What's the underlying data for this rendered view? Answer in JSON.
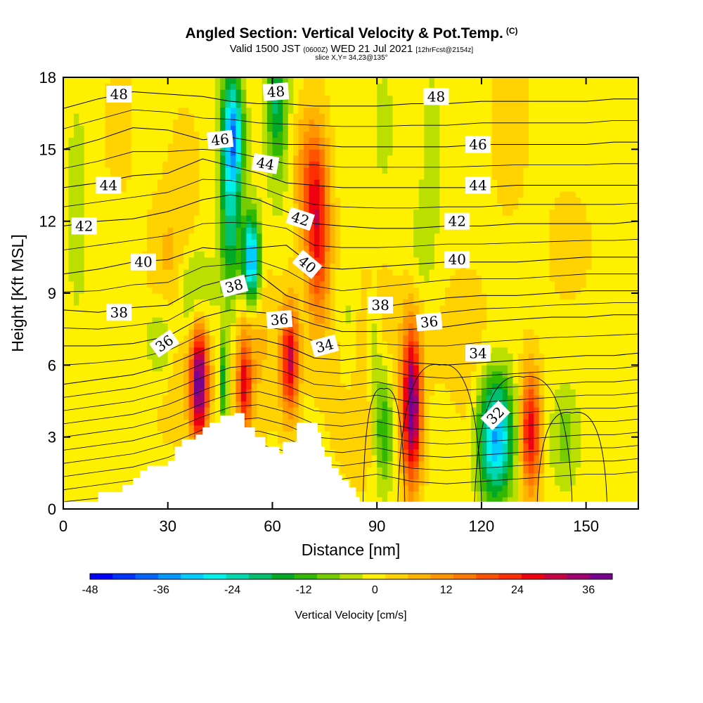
{
  "chart_data": {
    "type": "heatmap",
    "title": "Angled Section: Vertical Velocity & Pot.Temp.",
    "title_suffix": "(C)",
    "subtitle_main_pre": "Valid 1500 JST ",
    "subtitle_small1": "(0600Z)",
    "subtitle_main_post": " WED 21 Jul 2021 ",
    "subtitle_small2": "[12hrFcst@2154z]",
    "slice_info": "slice X,Y= 34,23@135°",
    "xlabel": "Distance [nm]",
    "ylabel": "Height [Kft MSL]",
    "xlim": [
      0,
      165
    ],
    "ylim": [
      0,
      18
    ],
    "xticks": [
      0,
      30,
      60,
      90,
      120,
      150
    ],
    "yticks": [
      0,
      3,
      6,
      9,
      12,
      15,
      18
    ],
    "colorbar": {
      "title": "Vertical Velocity [cm/s]",
      "min": -48,
      "max": 40,
      "step": 4,
      "tick_values": [
        -48,
        -36,
        -24,
        -12,
        0,
        12,
        24,
        36
      ],
      "tick_labels": [
        "-48",
        "-36",
        "-24",
        "-12",
        "0",
        "12",
        "24",
        "36"
      ]
    },
    "vertical_velocity_features": [
      {
        "x": 39,
        "z": 5.3,
        "sx": 1.8,
        "sz": 1.9,
        "w": 40
      },
      {
        "x": 52,
        "z": 5.0,
        "sx": 1.4,
        "sz": 1.4,
        "w": 24
      },
      {
        "x": 65,
        "z": 6.2,
        "sx": 1.8,
        "sz": 1.6,
        "w": 30
      },
      {
        "x": 73,
        "z": 11.5,
        "sx": 2.4,
        "sz": 2.6,
        "w": 26
      },
      {
        "x": 70,
        "z": 14.0,
        "sx": 3.0,
        "sz": 1.8,
        "w": 12
      },
      {
        "x": 100,
        "z": 4.3,
        "sx": 1.9,
        "sz": 2.3,
        "w": 40
      },
      {
        "x": 134,
        "z": 3.2,
        "sx": 2.1,
        "sz": 1.8,
        "w": 29
      },
      {
        "x": 53,
        "z": 7.0,
        "sx": 6.0,
        "sz": 2.5,
        "w": 8
      },
      {
        "x": 30,
        "z": 10.5,
        "sx": 4.0,
        "sz": 2.0,
        "w": 6
      },
      {
        "x": 32,
        "z": 6.0,
        "sx": 5.0,
        "sz": 2.2,
        "w": 5
      },
      {
        "x": 88,
        "z": 5.5,
        "sx": 8.0,
        "sz": 3.0,
        "w": 6
      },
      {
        "x": 115,
        "z": 5.5,
        "sx": 6.0,
        "sz": 3.0,
        "w": 5
      },
      {
        "x": 145,
        "z": 11.0,
        "sx": 4.0,
        "sz": 1.5,
        "w": 5
      },
      {
        "x": 128,
        "z": 16.5,
        "sx": 4.0,
        "sz": 3.0,
        "w": 4
      },
      {
        "x": 16,
        "z": 16.0,
        "sx": 3.0,
        "sz": 2.0,
        "w": 4
      },
      {
        "x": 35,
        "z": 14.0,
        "sx": 3.0,
        "sz": 2.0,
        "w": 4
      },
      {
        "x": 48,
        "z": 13.5,
        "sx": 2.2,
        "sz": 4.0,
        "w": -25
      },
      {
        "x": 54,
        "z": 10.4,
        "sx": 1.7,
        "sz": 1.3,
        "w": -40
      },
      {
        "x": 49,
        "z": 15.6,
        "sx": 2.0,
        "sz": 1.3,
        "w": -20
      },
      {
        "x": 38,
        "z": 8.8,
        "sx": 3.5,
        "sz": 1.4,
        "w": -12
      },
      {
        "x": 28,
        "z": 7.0,
        "sx": 3.0,
        "sz": 1.3,
        "w": -10
      },
      {
        "x": 46,
        "z": 5.3,
        "sx": 0.9,
        "sz": 1.4,
        "w": -18
      },
      {
        "x": 61,
        "z": 17.0,
        "sx": 2.0,
        "sz": 1.8,
        "w": -14
      },
      {
        "x": 62,
        "z": 16.0,
        "sx": 2.5,
        "sz": 3.0,
        "w": -6
      },
      {
        "x": 92,
        "z": 3.5,
        "sx": 2.0,
        "sz": 1.8,
        "w": -18
      },
      {
        "x": 89,
        "z": 6.5,
        "sx": 1.3,
        "sz": 1.5,
        "w": -10
      },
      {
        "x": 124,
        "z": 3.0,
        "sx": 3.7,
        "sz": 1.8,
        "w": -36
      },
      {
        "x": 110,
        "z": 3.0,
        "sx": 3.0,
        "sz": 1.5,
        "w": -5
      },
      {
        "x": 144,
        "z": 3.0,
        "sx": 3.0,
        "sz": 1.5,
        "w": -8
      },
      {
        "x": 4,
        "z": 12.5,
        "sx": 2.0,
        "sz": 3.0,
        "w": -6
      },
      {
        "x": 106,
        "z": 15.0,
        "sx": 2.5,
        "sz": 3.0,
        "w": -4
      },
      {
        "x": 92,
        "z": 16.0,
        "sx": 1.8,
        "sz": 1.5,
        "w": -6
      },
      {
        "x": 103,
        "z": 11.0,
        "sx": 2.5,
        "sz": 1.5,
        "w": -5
      },
      {
        "x": 82,
        "z": 7.5,
        "sx": 2.0,
        "sz": 2.0,
        "w": -6
      }
    ],
    "terrain": [
      [
        0,
        0.3
      ],
      [
        10,
        0.3
      ],
      [
        10,
        0.7
      ],
      [
        17,
        0.7
      ],
      [
        17,
        1.0
      ],
      [
        20,
        1.0
      ],
      [
        20,
        1.3
      ],
      [
        22,
        1.3
      ],
      [
        22,
        1.6
      ],
      [
        24,
        1.6
      ],
      [
        24,
        1.8
      ],
      [
        30,
        1.8
      ],
      [
        30,
        2.0
      ],
      [
        32,
        2.0
      ],
      [
        32,
        2.6
      ],
      [
        34,
        2.6
      ],
      [
        34,
        2.9
      ],
      [
        38,
        2.9
      ],
      [
        38,
        3.1
      ],
      [
        40,
        3.1
      ],
      [
        40,
        3.4
      ],
      [
        42,
        3.4
      ],
      [
        42,
        3.6
      ],
      [
        45,
        3.6
      ],
      [
        45,
        3.9
      ],
      [
        49,
        3.9
      ],
      [
        49,
        4.0
      ],
      [
        52,
        4.0
      ],
      [
        52,
        3.4
      ],
      [
        55,
        3.4
      ],
      [
        55,
        3.0
      ],
      [
        58,
        3.0
      ],
      [
        58,
        2.6
      ],
      [
        62,
        2.6
      ],
      [
        62,
        2.3
      ],
      [
        63,
        2.3
      ],
      [
        63,
        2.8
      ],
      [
        67,
        2.8
      ],
      [
        67,
        3.6
      ],
      [
        73,
        3.6
      ],
      [
        73,
        3.2
      ],
      [
        74,
        3.2
      ],
      [
        74,
        2.6
      ],
      [
        75,
        2.6
      ],
      [
        75,
        2.2
      ],
      [
        77,
        2.2
      ],
      [
        77,
        1.7
      ],
      [
        79,
        1.7
      ],
      [
        79,
        1.4
      ],
      [
        80,
        1.4
      ],
      [
        80,
        1.2
      ],
      [
        82,
        1.2
      ],
      [
        82,
        0.9
      ],
      [
        84,
        0.9
      ],
      [
        84,
        0.5
      ],
      [
        85,
        0.5
      ],
      [
        85,
        0.3
      ],
      [
        165,
        0.3
      ]
    ],
    "isentrope_contours": [
      {
        "theta": 48,
        "z": [
          16.7,
          17.1,
          17.4,
          17.3,
          17.2,
          17.0,
          16.9,
          16.9,
          16.8,
          16.8,
          16.8,
          16.9,
          16.9,
          17.0,
          17.0,
          17.0,
          17.0,
          17.1,
          17.1
        ]
      },
      {
        "theta": 46,
        "z": [
          15.0,
          15.4,
          15.9,
          15.8,
          15.4,
          15.5,
          15.3,
          15.2,
          15.2,
          15.1,
          15.1,
          15.1,
          15.1,
          15.2,
          15.2,
          15.2,
          15.2,
          15.3,
          15.3
        ]
      },
      {
        "theta": 44,
        "z": [
          13.4,
          13.6,
          13.9,
          14.0,
          14.6,
          14.3,
          14.0,
          13.6,
          13.5,
          13.4,
          13.4,
          13.4,
          13.4,
          13.4,
          13.5,
          13.5,
          13.5,
          13.5,
          13.5
        ]
      },
      {
        "theta": 42,
        "z": [
          11.8,
          12.0,
          12.1,
          12.4,
          12.9,
          13.1,
          12.9,
          12.4,
          11.9,
          11.8,
          11.7,
          11.7,
          11.8,
          11.8,
          11.9,
          11.9,
          11.9,
          11.9,
          12.0
        ]
      },
      {
        "theta": 40,
        "z": [
          9.8,
          10.0,
          10.3,
          10.4,
          10.9,
          10.8,
          10.9,
          11.0,
          10.1,
          10.0,
          10.1,
          10.2,
          10.3,
          10.3,
          10.3,
          10.4,
          10.5,
          10.5,
          10.5
        ]
      },
      {
        "theta": 38,
        "z": [
          8.3,
          8.2,
          8.4,
          8.5,
          9.3,
          9.6,
          9.8,
          8.9,
          8.5,
          8.2,
          8.4,
          8.6,
          8.8,
          8.9,
          8.9,
          9.0,
          9.1,
          9.1,
          9.1
        ]
      },
      {
        "theta": 36,
        "z": [
          6.8,
          6.8,
          6.9,
          7.2,
          8.0,
          8.3,
          8.2,
          8.1,
          7.7,
          7.4,
          7.4,
          7.5,
          7.6,
          7.8,
          7.9,
          8.0,
          8.0,
          8.1,
          8.1
        ]
      },
      {
        "theta": 34,
        "z": [
          5.2,
          5.4,
          5.6,
          6.0,
          6.6,
          7.0,
          7.1,
          6.8,
          6.3,
          6.2,
          6.4,
          6.1,
          6.0,
          6.1,
          6.2,
          6.3,
          6.4,
          6.4,
          6.5
        ]
      }
    ],
    "isentrope_x": [
      0,
      10,
      20,
      30,
      40,
      48,
      56,
      64,
      72,
      80,
      90,
      100,
      110,
      120,
      130,
      140,
      150,
      158,
      165
    ],
    "contour_labels": [
      {
        "text": "48",
        "x": 16,
        "z": 17.3,
        "angle": 0
      },
      {
        "text": "48",
        "x": 61,
        "z": 17.4,
        "angle": -4
      },
      {
        "text": "48",
        "x": 107,
        "z": 17.2,
        "angle": 0
      },
      {
        "text": "46",
        "x": 45,
        "z": 15.4,
        "angle": -6
      },
      {
        "text": "46",
        "x": 119,
        "z": 15.2,
        "angle": 0
      },
      {
        "text": "44",
        "x": 13,
        "z": 13.5,
        "angle": 0
      },
      {
        "text": "44",
        "x": 58,
        "z": 14.4,
        "angle": 10
      },
      {
        "text": "44",
        "x": 119,
        "z": 13.5,
        "angle": 0
      },
      {
        "text": "42",
        "x": 6,
        "z": 11.8,
        "angle": 0
      },
      {
        "text": "42",
        "x": 68,
        "z": 12.1,
        "angle": 18
      },
      {
        "text": "42",
        "x": 113,
        "z": 12.0,
        "angle": 0
      },
      {
        "text": "40",
        "x": 23,
        "z": 10.3,
        "angle": 0
      },
      {
        "text": "40",
        "x": 70,
        "z": 10.2,
        "angle": 40
      },
      {
        "text": "40",
        "x": 113,
        "z": 10.4,
        "angle": 0
      },
      {
        "text": "38",
        "x": 16,
        "z": 8.2,
        "angle": 0
      },
      {
        "text": "38",
        "x": 49,
        "z": 9.3,
        "angle": -15
      },
      {
        "text": "38",
        "x": 91,
        "z": 8.5,
        "angle": 0
      },
      {
        "text": "36",
        "x": 29,
        "z": 6.9,
        "angle": -35
      },
      {
        "text": "36",
        "x": 62,
        "z": 7.9,
        "angle": -5
      },
      {
        "text": "36",
        "x": 105,
        "z": 7.8,
        "angle": -5
      },
      {
        "text": "34",
        "x": 75,
        "z": 6.8,
        "angle": -15
      },
      {
        "text": "34",
        "x": 119,
        "z": 6.5,
        "angle": 0
      },
      {
        "text": "32",
        "x": 124,
        "z": 3.9,
        "angle": -45
      }
    ]
  }
}
